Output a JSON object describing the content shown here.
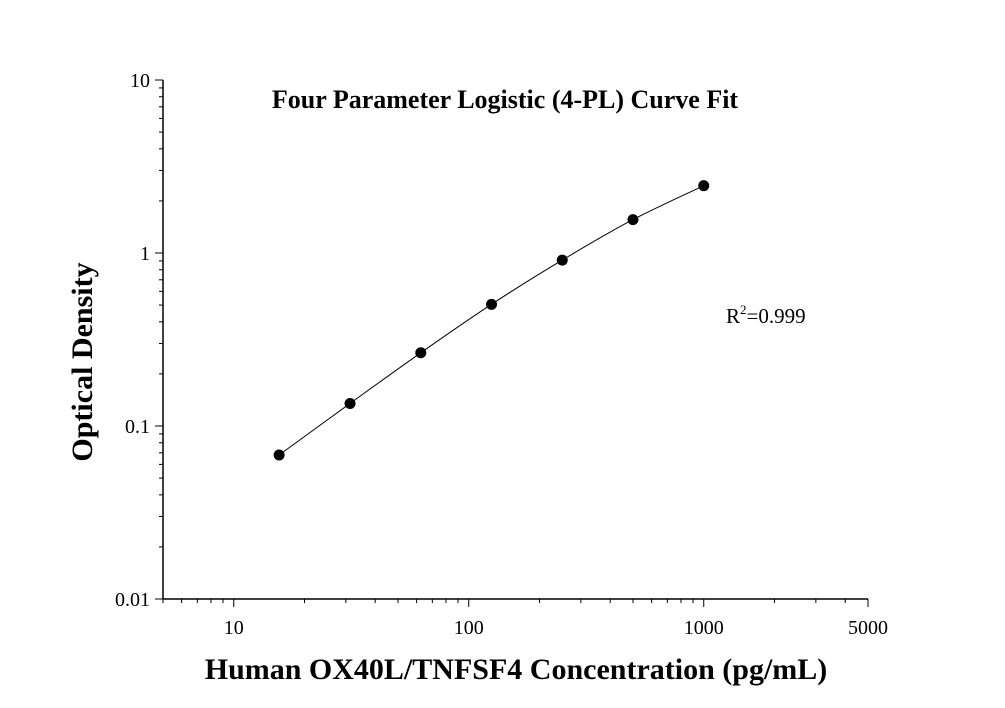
{
  "chart_data": {
    "type": "scatter",
    "title": "Four Parameter Logistic (4-PL) Curve Fit",
    "xlabel": "Human OX40L/TNFSF4 Concentration (pg/mL)",
    "ylabel": "Optical Density",
    "x_scale": "log",
    "y_scale": "log",
    "xlim": [
      5,
      5000
    ],
    "ylim": [
      0.01,
      10
    ],
    "x_ticks": [
      {
        "value": 10,
        "label": "10"
      },
      {
        "value": 100,
        "label": "100"
      },
      {
        "value": 1000,
        "label": "1000"
      },
      {
        "value": 5000,
        "label": "5000"
      }
    ],
    "y_ticks": [
      {
        "value": 0.01,
        "label": "0.01"
      },
      {
        "value": 0.1,
        "label": "0.1"
      },
      {
        "value": 1,
        "label": "1"
      },
      {
        "value": 10,
        "label": "10"
      }
    ],
    "series": [
      {
        "marker": "filled-circle",
        "color": "#000000",
        "x": [
          15.6,
          31.25,
          62.5,
          125,
          250,
          500,
          1000
        ],
        "y": [
          0.068,
          0.135,
          0.265,
          0.505,
          0.91,
          1.56,
          2.45
        ]
      }
    ],
    "fit_curve": {
      "color": "#000000"
    },
    "annotation": {
      "base": "R",
      "superscript": "2",
      "text": "=0.999"
    },
    "grid": false,
    "legend": "none"
  }
}
